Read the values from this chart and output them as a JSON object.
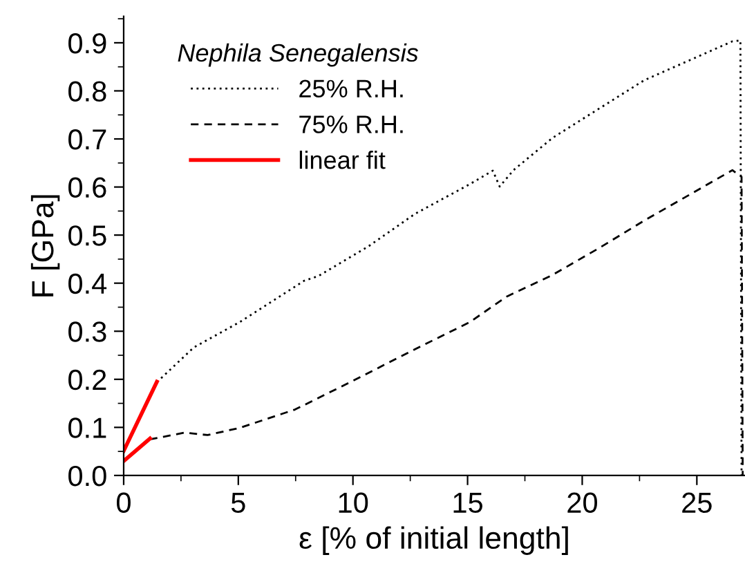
{
  "chart_data": {
    "type": "line",
    "legend_title": "Nephila Senegalensis",
    "xlabel": "ε [% of initial length]",
    "ylabel": "F [GPa]",
    "xlim": [
      0,
      27.1
    ],
    "ylim": [
      0,
      0.955
    ],
    "xticks": [
      0,
      5,
      10,
      15,
      20,
      25
    ],
    "yticks": [
      {
        "value": 0,
        "label": "0.0"
      },
      0.1,
      0.2,
      0.3,
      0.4,
      0.5,
      0.6,
      0.7,
      0.8,
      0.9
    ],
    "legend": "top left",
    "grid": false,
    "series": [
      {
        "name": "25% R.H.",
        "color": "#000000",
        "line_style": "dotted",
        "x": [
          1.45,
          3.05,
          5.06,
          7.87,
          8.5,
          10.69,
          12.7,
          15.1,
          16.1,
          16.4,
          17.0,
          18.7,
          22.7,
          26.55,
          26.9,
          26.95
        ],
        "values": [
          0.194,
          0.266,
          0.319,
          0.405,
          0.415,
          0.477,
          0.544,
          0.606,
          0.634,
          0.601,
          0.635,
          0.702,
          0.822,
          0.903,
          0.905,
          0.0
        ]
      },
      {
        "name": "75% R.H.",
        "color": "#000000",
        "line_style": "dashed",
        "x": [
          1.14,
          2.65,
          3.66,
          5.06,
          7.47,
          9.88,
          12.68,
          15.1,
          16.7,
          18.7,
          20.7,
          22.7,
          26.55,
          26.95,
          27.0
        ],
        "values": [
          0.075,
          0.089,
          0.084,
          0.099,
          0.137,
          0.194,
          0.262,
          0.319,
          0.372,
          0.417,
          0.472,
          0.53,
          0.635,
          0.621,
          0.0
        ]
      },
      {
        "name": "linear fit",
        "color": "#ff0000",
        "line_style": "solid",
        "x": [
          0,
          1.45
        ],
        "values": [
          0.051,
          0.195
        ]
      },
      {
        "color": "#ff0000",
        "line_style": "solid",
        "x": [
          0,
          1.15
        ],
        "values": [
          0.03,
          0.077
        ]
      }
    ]
  }
}
